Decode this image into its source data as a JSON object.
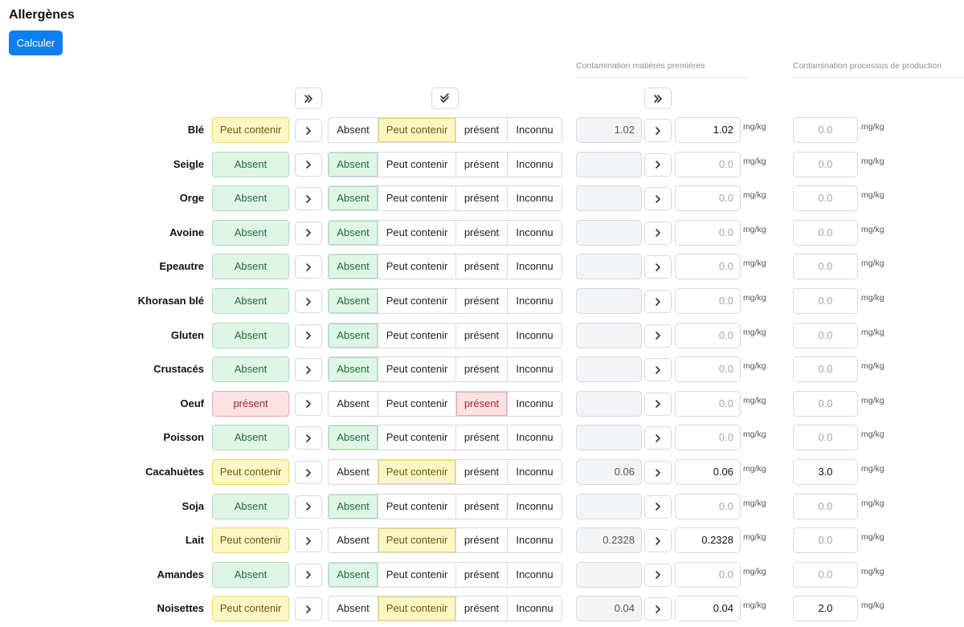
{
  "title": "Allergènes",
  "calc_label": "Calculer",
  "section_raw": "Contamination matières premières",
  "section_proc": "Contamination processus de production",
  "icons": {
    "copy_all_status": "double-chevron-right-icon",
    "validate_all": "double-check-icon",
    "copy_all_values": "double-chevron-right-icon",
    "row_copy": "chevron-right-icon"
  },
  "options": [
    "Absent",
    "Peut contenir",
    "présent",
    "Inconnu"
  ],
  "unit": "mg/kg",
  "placeholder": "0.0",
  "rows": [
    {
      "name": "Blé",
      "status": "Peut contenir",
      "raw": "1.02",
      "value": "1.02",
      "proc": ""
    },
    {
      "name": "Seigle",
      "status": "Absent",
      "raw": "",
      "value": "",
      "proc": ""
    },
    {
      "name": "Orge",
      "status": "Absent",
      "raw": "",
      "value": "",
      "proc": ""
    },
    {
      "name": "Avoine",
      "status": "Absent",
      "raw": "",
      "value": "",
      "proc": ""
    },
    {
      "name": "Epeautre",
      "status": "Absent",
      "raw": "",
      "value": "",
      "proc": ""
    },
    {
      "name": "Khorasan blé",
      "status": "Absent",
      "raw": "",
      "value": "",
      "proc": ""
    },
    {
      "name": "Gluten",
      "status": "Absent",
      "raw": "",
      "value": "",
      "proc": ""
    },
    {
      "name": "Crustacés",
      "status": "Absent",
      "raw": "",
      "value": "",
      "proc": ""
    },
    {
      "name": "Oeuf",
      "status": "présent",
      "raw": "",
      "value": "",
      "proc": ""
    },
    {
      "name": "Poisson",
      "status": "Absent",
      "raw": "",
      "value": "",
      "proc": ""
    },
    {
      "name": "Cacahuètes",
      "status": "Peut contenir",
      "raw": "0.06",
      "value": "0.06",
      "proc": "3.0"
    },
    {
      "name": "Soja",
      "status": "Absent",
      "raw": "",
      "value": "",
      "proc": ""
    },
    {
      "name": "Lait",
      "status": "Peut contenir",
      "raw": "0.2328",
      "value": "0.2328",
      "proc": ""
    },
    {
      "name": "Amandes",
      "status": "Absent",
      "raw": "",
      "value": "",
      "proc": ""
    },
    {
      "name": "Noisettes",
      "status": "Peut contenir",
      "raw": "0.04",
      "value": "0.04",
      "proc": "2.0"
    }
  ]
}
